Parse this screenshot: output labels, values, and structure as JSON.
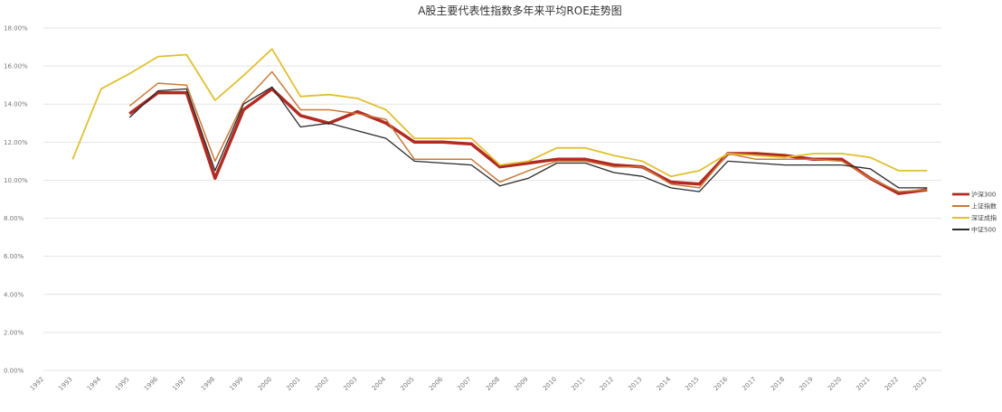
{
  "chart_data": {
    "type": "line",
    "title": "A股主要代表性指数多年来平均ROE走势图",
    "xlabel": "",
    "ylabel": "",
    "ylim": [
      0,
      18
    ],
    "yticks": [
      "0.00%",
      "2.00%",
      "4.00%",
      "6.00%",
      "8.00%",
      "10.00%",
      "12.00%",
      "14.00%",
      "16.00%",
      "18.00%"
    ],
    "grid": true,
    "legend_position": "right",
    "categories": [
      "1992",
      "1993",
      "1994",
      "1995",
      "1996",
      "1997",
      "1998",
      "1999",
      "2000",
      "2001",
      "2002",
      "2003",
      "2004",
      "2005",
      "2006",
      "2007",
      "2008",
      "2009",
      "2010",
      "2011",
      "2012",
      "2013",
      "2014",
      "2015",
      "2016",
      "2017",
      "2018",
      "2019",
      "2020",
      "2021",
      "2022",
      "2023"
    ],
    "series": [
      {
        "name": "沪深300",
        "color": "#b22a22",
        "width": 3.5,
        "values": [
          null,
          null,
          null,
          13.5,
          14.6,
          14.6,
          10.1,
          13.7,
          14.8,
          13.4,
          13.0,
          13.6,
          13.0,
          12.0,
          12.0,
          11.9,
          10.7,
          10.9,
          11.1,
          11.1,
          10.8,
          10.7,
          9.9,
          9.8,
          11.4,
          11.4,
          11.3,
          11.1,
          11.1,
          10.1,
          9.3,
          9.5
        ]
      },
      {
        "name": "上证指数",
        "color": "#c97a3a",
        "width": 1.5,
        "values": [
          null,
          null,
          null,
          13.9,
          15.1,
          15.0,
          11.0,
          14.1,
          15.7,
          13.7,
          13.7,
          13.5,
          13.2,
          11.1,
          11.1,
          11.1,
          9.9,
          10.5,
          11.0,
          11.0,
          10.7,
          10.7,
          9.8,
          9.6,
          11.4,
          11.1,
          11.1,
          11.1,
          11.0,
          10.1,
          9.4,
          9.5
        ]
      },
      {
        "name": "深证成指",
        "color": "#e0c030",
        "width": 1.8,
        "values": [
          null,
          11.1,
          14.8,
          15.6,
          16.5,
          16.6,
          14.2,
          15.5,
          16.9,
          14.4,
          14.5,
          14.3,
          13.7,
          12.2,
          12.2,
          12.2,
          10.8,
          11.0,
          11.7,
          11.7,
          11.3,
          11.0,
          10.2,
          10.5,
          11.4,
          11.3,
          11.2,
          11.4,
          11.4,
          11.2,
          10.5,
          10.5
        ]
      },
      {
        "name": "中证500",
        "color": "#2a2a2a",
        "width": 1.3,
        "values": [
          null,
          null,
          null,
          13.3,
          14.7,
          14.8,
          10.5,
          14.0,
          14.9,
          12.8,
          13.0,
          12.6,
          12.2,
          11.0,
          10.9,
          10.8,
          9.7,
          10.1,
          10.9,
          10.9,
          10.4,
          10.2,
          9.6,
          9.4,
          11.0,
          10.9,
          10.8,
          10.8,
          10.8,
          10.6,
          9.6,
          9.6
        ]
      }
    ]
  }
}
